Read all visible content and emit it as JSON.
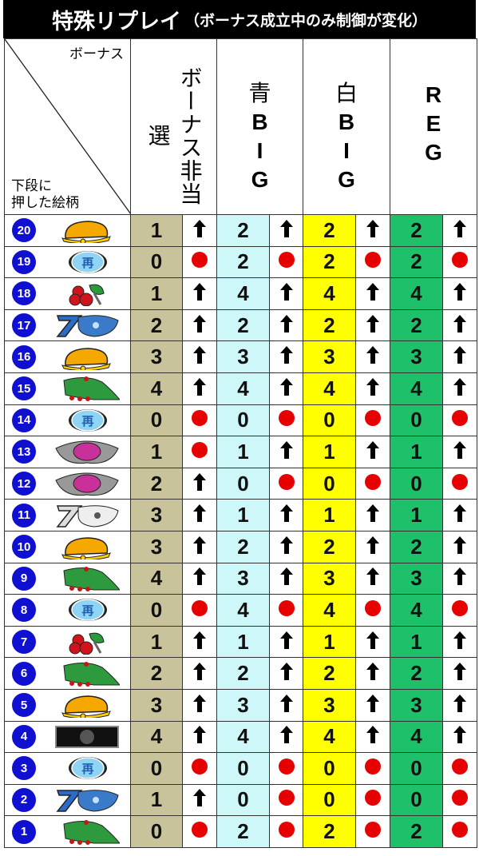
{
  "title": {
    "main": "特殊リプレイ",
    "sub": "（ボーナス成立中のみ制御が変化）"
  },
  "header": {
    "corner_top": "ボーナス",
    "corner_bottom_1": "下段に",
    "corner_bottom_2": "押した絵柄",
    "col1": "ボーナス非当選",
    "col2": [
      "青",
      "B",
      "I",
      "G"
    ],
    "col3": [
      "白",
      "B",
      "I",
      "G"
    ],
    "col4": [
      "R",
      "E",
      "G"
    ]
  },
  "colors": {
    "col1": "#c8c39b",
    "col2": "#cdf7f8",
    "col3": "#ffff00",
    "col4": "#1ec16a",
    "badge": "#1010d0",
    "dot": "#e60000"
  },
  "legend_marks": {
    "up": "arrow-up-icon",
    "dot": "red-dot-icon"
  },
  "rows": [
    {
      "no": "20",
      "symbol": "bell",
      "cells": [
        [
          1,
          "up"
        ],
        [
          2,
          "up"
        ],
        [
          2,
          "up"
        ],
        [
          2,
          "up"
        ]
      ]
    },
    {
      "no": "19",
      "symbol": "replay",
      "cells": [
        [
          0,
          "dot"
        ],
        [
          2,
          "dot"
        ],
        [
          2,
          "dot"
        ],
        [
          2,
          "dot"
        ]
      ]
    },
    {
      "no": "18",
      "symbol": "cherry",
      "cells": [
        [
          1,
          "up"
        ],
        [
          4,
          "up"
        ],
        [
          4,
          "up"
        ],
        [
          4,
          "up"
        ]
      ]
    },
    {
      "no": "17",
      "symbol": "blue-seven",
      "cells": [
        [
          2,
          "up"
        ],
        [
          2,
          "up"
        ],
        [
          2,
          "up"
        ],
        [
          2,
          "up"
        ]
      ]
    },
    {
      "no": "16",
      "symbol": "bell",
      "cells": [
        [
          3,
          "up"
        ],
        [
          3,
          "up"
        ],
        [
          3,
          "up"
        ],
        [
          3,
          "up"
        ]
      ]
    },
    {
      "no": "15",
      "symbol": "watermelon",
      "cells": [
        [
          4,
          "up"
        ],
        [
          4,
          "up"
        ],
        [
          4,
          "up"
        ],
        [
          4,
          "up"
        ]
      ]
    },
    {
      "no": "14",
      "symbol": "replay",
      "cells": [
        [
          0,
          "dot"
        ],
        [
          0,
          "dot"
        ],
        [
          0,
          "dot"
        ],
        [
          0,
          "dot"
        ]
      ]
    },
    {
      "no": "13",
      "symbol": "pink-bar",
      "cells": [
        [
          1,
          "dot"
        ],
        [
          1,
          "up"
        ],
        [
          1,
          "up"
        ],
        [
          1,
          "up"
        ]
      ]
    },
    {
      "no": "12",
      "symbol": "pink-bar",
      "cells": [
        [
          2,
          "up"
        ],
        [
          0,
          "dot"
        ],
        [
          0,
          "dot"
        ],
        [
          0,
          "dot"
        ]
      ]
    },
    {
      "no": "11",
      "symbol": "white-seven",
      "cells": [
        [
          3,
          "up"
        ],
        [
          1,
          "up"
        ],
        [
          1,
          "up"
        ],
        [
          1,
          "up"
        ]
      ]
    },
    {
      "no": "10",
      "symbol": "bell",
      "cells": [
        [
          3,
          "up"
        ],
        [
          2,
          "up"
        ],
        [
          2,
          "up"
        ],
        [
          2,
          "up"
        ]
      ]
    },
    {
      "no": "9",
      "symbol": "watermelon",
      "cells": [
        [
          4,
          "up"
        ],
        [
          3,
          "up"
        ],
        [
          3,
          "up"
        ],
        [
          3,
          "up"
        ]
      ]
    },
    {
      "no": "8",
      "symbol": "replay",
      "cells": [
        [
          0,
          "dot"
        ],
        [
          4,
          "dot"
        ],
        [
          4,
          "dot"
        ],
        [
          4,
          "dot"
        ]
      ]
    },
    {
      "no": "7",
      "symbol": "cherry",
      "cells": [
        [
          1,
          "up"
        ],
        [
          1,
          "up"
        ],
        [
          1,
          "up"
        ],
        [
          1,
          "up"
        ]
      ]
    },
    {
      "no": "6",
      "symbol": "watermelon",
      "cells": [
        [
          2,
          "up"
        ],
        [
          2,
          "up"
        ],
        [
          2,
          "up"
        ],
        [
          2,
          "up"
        ]
      ]
    },
    {
      "no": "5",
      "symbol": "bell",
      "cells": [
        [
          3,
          "up"
        ],
        [
          3,
          "up"
        ],
        [
          3,
          "up"
        ],
        [
          3,
          "up"
        ]
      ]
    },
    {
      "no": "4",
      "symbol": "black-bar",
      "cells": [
        [
          4,
          "up"
        ],
        [
          4,
          "up"
        ],
        [
          4,
          "up"
        ],
        [
          4,
          "up"
        ]
      ]
    },
    {
      "no": "3",
      "symbol": "replay",
      "cells": [
        [
          0,
          "dot"
        ],
        [
          0,
          "dot"
        ],
        [
          0,
          "dot"
        ],
        [
          0,
          "dot"
        ]
      ]
    },
    {
      "no": "2",
      "symbol": "blue-seven",
      "cells": [
        [
          1,
          "up"
        ],
        [
          0,
          "dot"
        ],
        [
          0,
          "dot"
        ],
        [
          0,
          "dot"
        ]
      ]
    },
    {
      "no": "1",
      "symbol": "watermelon",
      "cells": [
        [
          0,
          "dot"
        ],
        [
          2,
          "dot"
        ],
        [
          2,
          "dot"
        ],
        [
          2,
          "dot"
        ]
      ]
    }
  ]
}
